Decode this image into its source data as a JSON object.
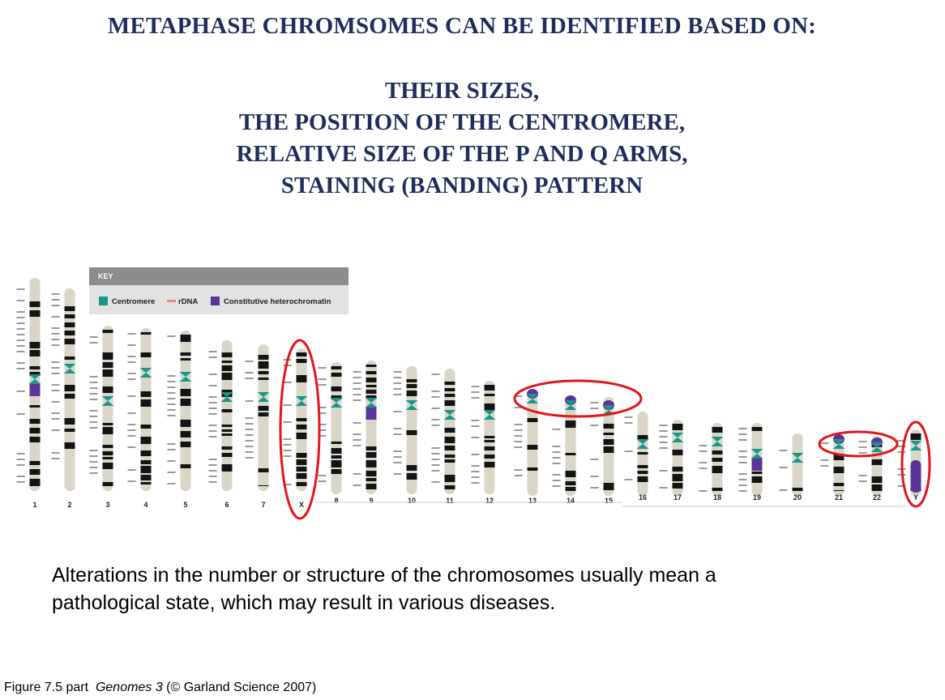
{
  "title": "METAPHASE CHROMSOMES CAN BE IDENTIFIED BASED ON:",
  "criteria": [
    "THEIR SIZES,",
    "THE POSITION OF THE CENTROMERE,",
    "RELATIVE SIZE OF THE P AND Q ARMS,",
    "STAINING (BANDING) PATTERN"
  ],
  "key": {
    "title": "KEY",
    "items": [
      {
        "label": "Centromere",
        "color": "#17978a"
      },
      {
        "label": "rDNA",
        "color": "#e88a8a"
      },
      {
        "label": "Constitutive heterochromatin",
        "color": "#5b3497"
      }
    ]
  },
  "chromosomes": [
    {
      "label": "1"
    },
    {
      "label": "2"
    },
    {
      "label": "3"
    },
    {
      "label": "4"
    },
    {
      "label": "5"
    },
    {
      "label": "6"
    },
    {
      "label": "7"
    },
    {
      "label": "X"
    },
    {
      "label": "8"
    },
    {
      "label": "9"
    },
    {
      "label": "10"
    },
    {
      "label": "11"
    },
    {
      "label": "12"
    },
    {
      "label": "13"
    },
    {
      "label": "14"
    },
    {
      "label": "15"
    },
    {
      "label": "16"
    },
    {
      "label": "17"
    },
    {
      "label": "18"
    },
    {
      "label": "19"
    },
    {
      "label": "20"
    },
    {
      "label": "21"
    },
    {
      "label": "22"
    },
    {
      "label": "Y"
    }
  ],
  "highlight_color": "#e3161b",
  "body_text": [
    "Alterations in the number or structure of the chromosomes usually mean a",
    "pathological state, which may result in various diseases."
  ],
  "caption": {
    "prefix": "Figure 7.5 part",
    "book": "Genomes 3",
    "suffix": "(© Garland Science 2007)"
  }
}
